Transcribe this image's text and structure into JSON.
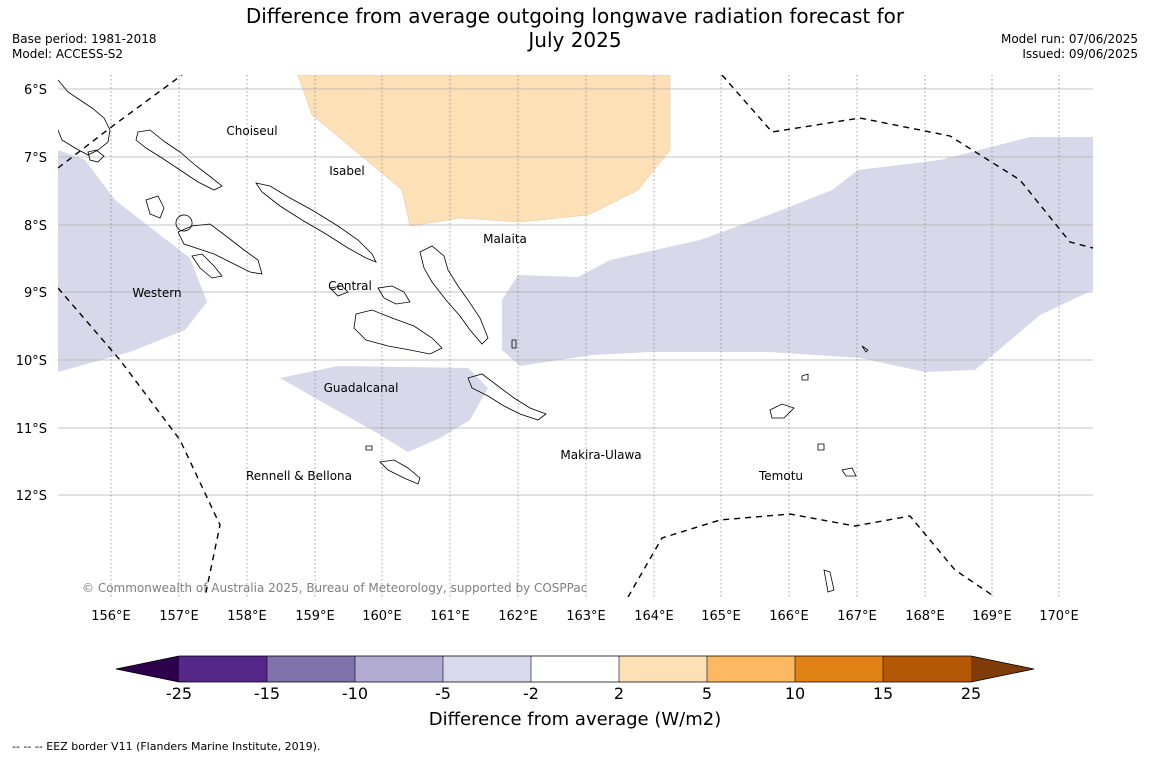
{
  "header": {
    "title_line1": "Difference from average outgoing longwave radiation forecast for",
    "title_line2": "July 2025",
    "base_period": "Base period: 1981-2018",
    "model": "Model: ACCESS-S2",
    "model_run": "Model run: 07/06/2025",
    "issued": "Issued: 09/06/2025"
  },
  "map": {
    "lat_labels": [
      "6°S",
      "7°S",
      "8°S",
      "9°S",
      "10°S",
      "11°S",
      "12°S"
    ],
    "lon_labels": [
      "156°E",
      "157°E",
      "158°E",
      "159°E",
      "160°E",
      "161°E",
      "162°E",
      "163°E",
      "164°E",
      "165°E",
      "166°E",
      "167°E",
      "168°E",
      "169°E",
      "170°E"
    ],
    "provinces": [
      "Choiseul",
      "Isabel",
      "Malaita",
      "Western",
      "Central",
      "Guadalcanal",
      "Makira-Ulawa",
      "Rennell & Bellona",
      "Temotu"
    ],
    "copyright": "© Commonwealth of Australia 2025, Bureau of Meteorology, supported by COSPPac",
    "colors": {
      "anomaly_positive_2_5": "#fde0b6",
      "anomaly_negative_5_2": "#d8d8ea",
      "coastline": "#000000",
      "eez_border": "#000000"
    }
  },
  "colorbar": {
    "title": "Difference from average (W/m2)",
    "tick_labels": [
      "-25",
      "-15",
      "-10",
      "-5",
      "-2",
      "2",
      "5",
      "10",
      "15",
      "25"
    ],
    "bin_colors": [
      "#2d004b",
      "#542788",
      "#8073ac",
      "#b2abd2",
      "#d8daeb",
      "#ffffff",
      "#fee0b6",
      "#fdb863",
      "#e08214",
      "#b35806",
      "#7f3b08"
    ]
  },
  "footnote": "-- -- -- EEZ border V11 (Flanders Marine Institute, 2019)."
}
